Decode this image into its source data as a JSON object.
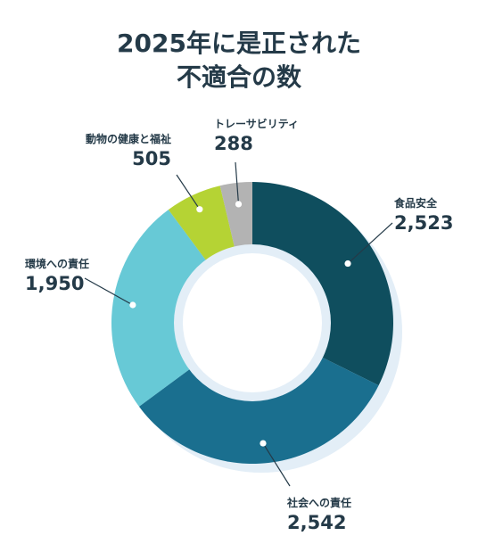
{
  "title_line1": "2025年に是正された",
  "title_line2": "不適合の数",
  "chart_data": {
    "type": "pie",
    "donut": true,
    "title": "2025年に是正された不適合の数",
    "slices": [
      {
        "label": "食品安全",
        "value": 2523,
        "value_text": "2,523",
        "color": "#0f4e5e"
      },
      {
        "label": "社会への責任",
        "value": 2542,
        "value_text": "2,542",
        "color": "#1a6f8f"
      },
      {
        "label": "環境への責任",
        "value": 1950,
        "value_text": "1,950",
        "color": "#67c9d6"
      },
      {
        "label": "動物の健康と福祉",
        "value": 505,
        "value_text": "505",
        "color": "#b5d334"
      },
      {
        "label": "トレーサビリティ",
        "value": 288,
        "value_text": "288",
        "color": "#b3b3b3"
      }
    ],
    "legend": "none",
    "shadow_color": "#e3eef7"
  }
}
